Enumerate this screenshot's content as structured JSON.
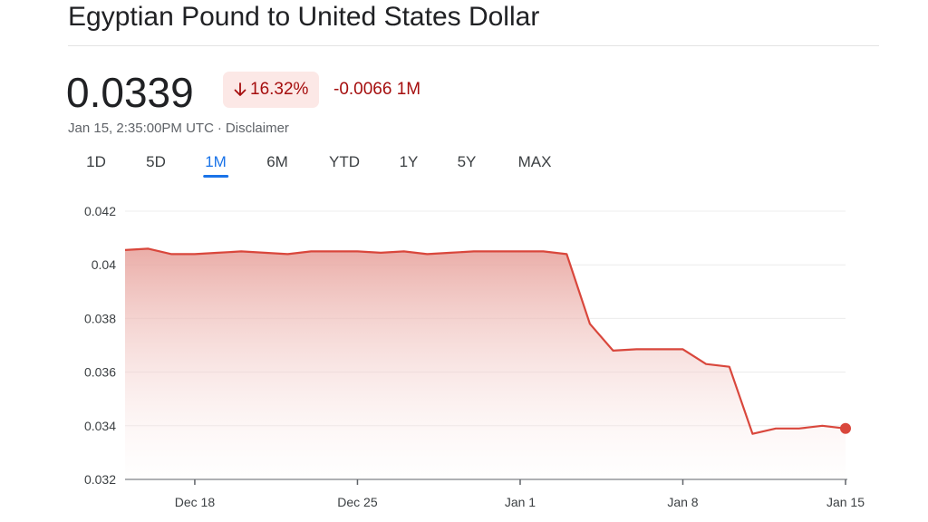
{
  "header": {
    "title": "Egyptian Pound to United States Dollar"
  },
  "quote": {
    "price": "0.0339",
    "percent_change": "16.32%",
    "abs_change": "-0.0066 1M",
    "direction": "down",
    "timestamp": "Jan 15, 2:35:00PM UTC",
    "disclaimer": "Disclaimer"
  },
  "tabs": [
    {
      "label": "1D",
      "active": false
    },
    {
      "label": "5D",
      "active": false
    },
    {
      "label": "1M",
      "active": true
    },
    {
      "label": "6M",
      "active": false
    },
    {
      "label": "YTD",
      "active": false
    },
    {
      "label": "1Y",
      "active": false
    },
    {
      "label": "5Y",
      "active": false
    },
    {
      "label": "MAX",
      "active": false
    }
  ],
  "colors": {
    "negative": "#a50e0e",
    "negative_bg": "#fce8e6",
    "line": "#d9473c",
    "accent": "#1a73e8"
  },
  "chart_data": {
    "type": "area",
    "title": "",
    "xlabel": "",
    "ylabel": "",
    "ylim": [
      0.032,
      0.042
    ],
    "yticks": [
      "0.042",
      "0.04",
      "0.038",
      "0.036",
      "0.034",
      "0.032"
    ],
    "xticks": [
      {
        "label": "Dec 18",
        "day": 3
      },
      {
        "label": "Dec 25",
        "day": 10
      },
      {
        "label": "Jan 1",
        "day": 17
      },
      {
        "label": "Jan 8",
        "day": 24
      },
      {
        "label": "Jan 15",
        "day": 31
      }
    ],
    "grid": true,
    "series": [
      {
        "x": [
          "Dec 15",
          "Dec 16",
          "Dec 17",
          "Dec 18",
          "Dec 19",
          "Dec 20",
          "Dec 21",
          "Dec 22",
          "Dec 23",
          "Dec 24",
          "Dec 25",
          "Dec 26",
          "Dec 27",
          "Dec 28",
          "Dec 29",
          "Dec 30",
          "Dec 31",
          "Jan 1",
          "Jan 2",
          "Jan 3",
          "Jan 4",
          "Jan 5",
          "Jan 6",
          "Jan 7",
          "Jan 8",
          "Jan 9",
          "Jan 10",
          "Jan 11",
          "Jan 12",
          "Jan 13",
          "Jan 14",
          "Jan 15"
        ],
        "day": [
          0,
          1,
          2,
          3,
          4,
          5,
          6,
          7,
          8,
          9,
          10,
          11,
          12,
          13,
          14,
          15,
          16,
          17,
          18,
          19,
          20,
          21,
          22,
          23,
          24,
          25,
          26,
          27,
          28,
          29,
          30,
          31
        ],
        "values": [
          0.04055,
          0.0406,
          0.0404,
          0.0404,
          0.04045,
          0.0405,
          0.04045,
          0.0404,
          0.0405,
          0.0405,
          0.0405,
          0.04045,
          0.0405,
          0.0404,
          0.04045,
          0.0405,
          0.0405,
          0.0405,
          0.0405,
          0.0404,
          0.0378,
          0.0368,
          0.03685,
          0.03685,
          0.03685,
          0.0363,
          0.0362,
          0.0337,
          0.0339,
          0.0339,
          0.034,
          0.0339
        ]
      }
    ]
  }
}
